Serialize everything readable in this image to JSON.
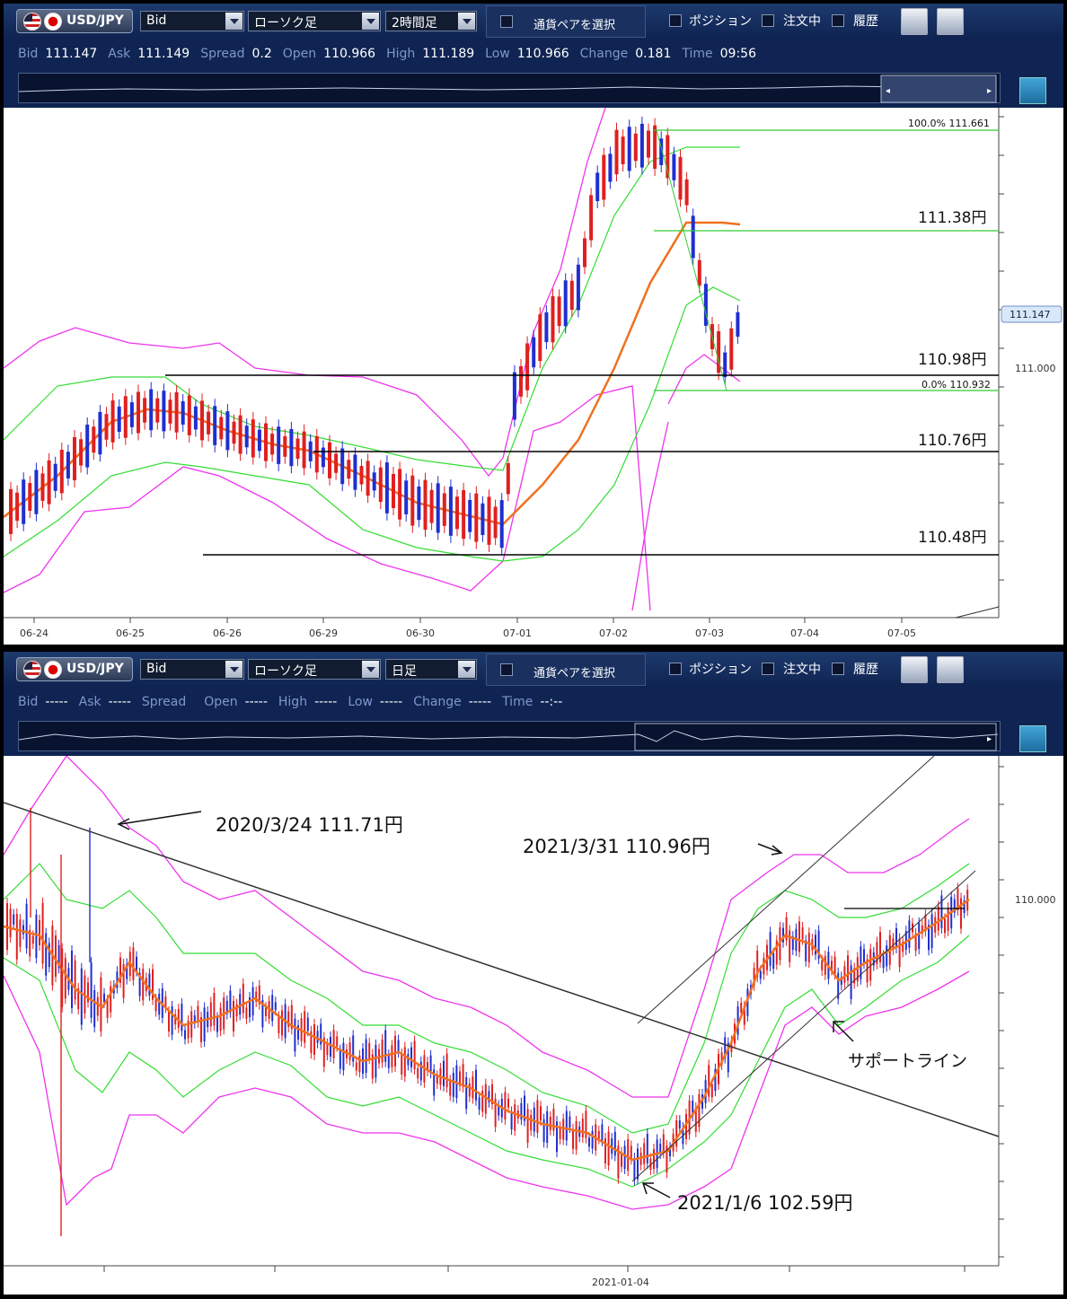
{
  "top": {
    "toolbar": {
      "pair": "USD/JPY",
      "price_type": "Bid",
      "chart_type": "ローソク足",
      "timeframe": "2時間足",
      "select_pair": "通貨ペアを選択",
      "position": "ポジション",
      "orders": "注文中",
      "history": "履歴"
    },
    "info": [
      {
        "k": "Bid",
        "v": "111.147"
      },
      {
        "k": "Ask",
        "v": "111.149"
      },
      {
        "k": "Spread",
        "v": "0.2"
      },
      {
        "k": "Open",
        "v": "110.966"
      },
      {
        "k": "High",
        "v": "111.189"
      },
      {
        "k": "Low",
        "v": "110.966"
      },
      {
        "k": "Change",
        "v": "0.181"
      },
      {
        "k": "Time",
        "v": "09:56"
      }
    ],
    "fib_high_label": "100.0%  111.661",
    "fib_low_label": "0.0%  110.932",
    "current_price": "111.147",
    "axis_label": "111.000",
    "levels": [
      "111.38円",
      "110.98円",
      "110.76円",
      "110.48円"
    ],
    "dates": [
      "06-24",
      "06-25",
      "06-26",
      "06-29",
      "06-30",
      "07-01",
      "07-02",
      "07-03",
      "07-04",
      "07-05"
    ]
  },
  "bottom": {
    "toolbar": {
      "pair": "USD/JPY",
      "price_type": "Bid",
      "chart_type": "ローソク足",
      "timeframe": "日足",
      "select_pair": "通貨ペアを選択",
      "position": "ポジション",
      "orders": "注文中",
      "history": "履歴"
    },
    "info": [
      {
        "k": "Bid",
        "v": "-----"
      },
      {
        "k": "Ask",
        "v": "-----"
      },
      {
        "k": "Spread",
        "v": ""
      },
      {
        "k": "Open",
        "v": "-----"
      },
      {
        "k": "High",
        "v": "-----"
      },
      {
        "k": "Low",
        "v": "-----"
      },
      {
        "k": "Change",
        "v": "-----"
      },
      {
        "k": "Time",
        "v": "--:--"
      }
    ],
    "axis_label": "110.000",
    "date_label": "2021-01-04",
    "annotations": {
      "high_2020": "2020/3/24  111.71円",
      "high_2021": "2021/3/31  110.96円",
      "low_2021": "2021/1/6  102.59円",
      "support": "サポートライン"
    }
  },
  "colors": {
    "up": "#1f2fd0",
    "down": "#e02020",
    "ma": "#f07020",
    "band_inner": "#33dd33",
    "band_outer": "#ee33ee",
    "fib": "#33cc33"
  },
  "chart_data": [
    {
      "type": "candlestick",
      "title": "USD/JPY 2時間足",
      "x": [
        "06-24",
        "06-25",
        "06-26",
        "06-29",
        "06-30",
        "07-01",
        "07-02",
        "07-03",
        "07-04",
        "07-05"
      ],
      "horizontal_levels": [
        111.38,
        110.98,
        110.76,
        110.48
      ],
      "fibonacci": {
        "high": 111.661,
        "low": 110.932
      },
      "current": 111.147,
      "series": [
        {
          "name": "Bid",
          "ohlc_range": [
            110.41,
            111.661
          ]
        }
      ]
    },
    {
      "type": "candlestick",
      "title": "USD/JPY 日足",
      "points": [
        {
          "label": "2020/3/24",
          "value": 111.71
        },
        {
          "label": "2021/1/6",
          "value": 102.59
        },
        {
          "label": "2021/3/31",
          "value": 110.96
        }
      ],
      "axis_ticks": [
        "110.000"
      ],
      "x_ticks": [
        "2021-01-04"
      ]
    }
  ]
}
